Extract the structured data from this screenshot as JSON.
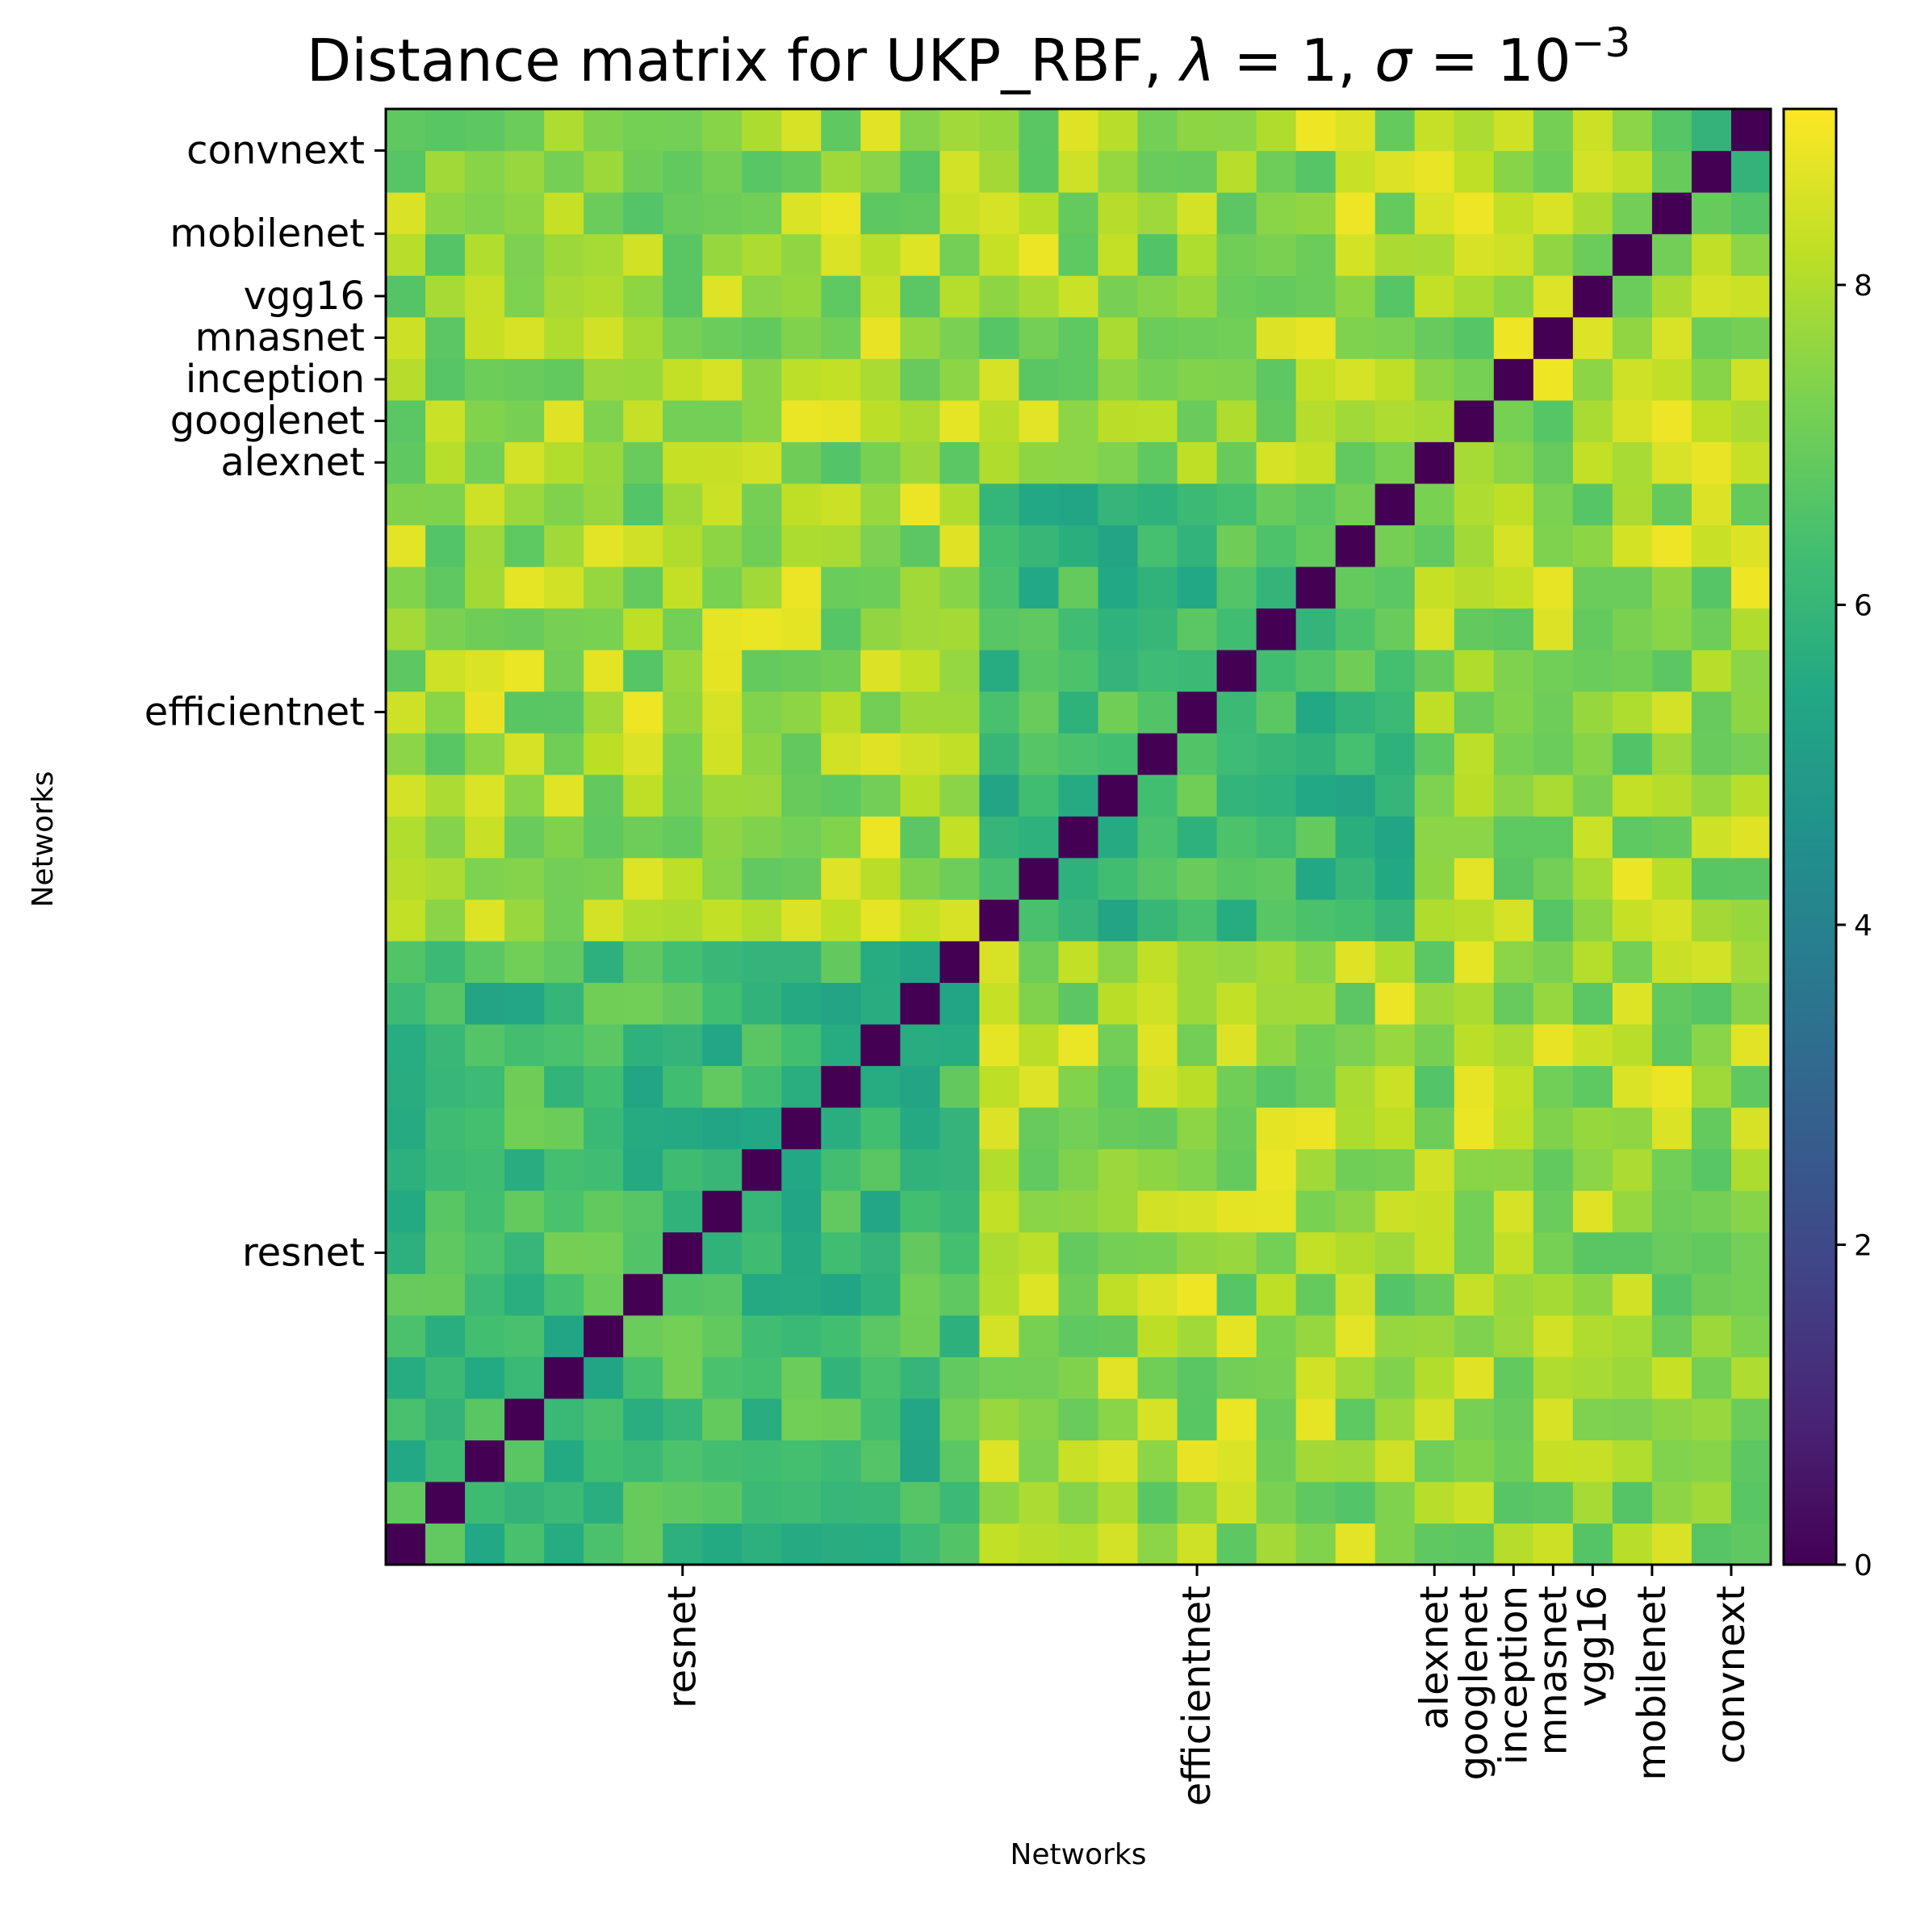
{
  "chart_data": {
    "type": "heatmap",
    "title": {
      "prefix": "Distance matrix for UKP_RBF, ",
      "lambda_symbol": "λ",
      "lambda_value": "1",
      "sigma_symbol": "σ",
      "sigma_base": "10",
      "sigma_exponent": "−3"
    },
    "xlabel": "Networks",
    "ylabel": "Networks",
    "n": 35,
    "colormap": "viridis",
    "value_range": [
      0,
      9.1
    ],
    "colorbar_ticks": [
      "0",
      "2",
      "4",
      "6",
      "8"
    ],
    "colorbar_tick_values": [
      0,
      2,
      4,
      6,
      8
    ],
    "groups": [
      {
        "name": "resnet",
        "start": 0,
        "end": 14
      },
      {
        "name": "efficientnet",
        "start": 15,
        "end": 25
      },
      {
        "name": "alexnet",
        "start": 26,
        "end": 26
      },
      {
        "name": "googlenet",
        "start": 27,
        "end": 27
      },
      {
        "name": "inception",
        "start": 28,
        "end": 28
      },
      {
        "name": "mnasnet",
        "start": 29,
        "end": 29
      },
      {
        "name": "vgg16",
        "start": 30,
        "end": 30
      },
      {
        "name": "mobilenet",
        "start": 31,
        "end": 32
      },
      {
        "name": "convnext",
        "start": 33,
        "end": 34
      }
    ],
    "within_group_range": [
      5.3,
      7.2
    ],
    "between_group_range": [
      6.6,
      8.9
    ],
    "diagonal_value": 0,
    "grid": false
  }
}
